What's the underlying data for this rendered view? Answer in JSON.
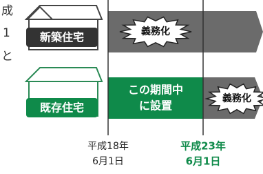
{
  "side_text": [
    "成",
    "1",
    "と"
  ],
  "rows": [
    {
      "label": "新築住宅",
      "badge": "義務化"
    },
    {
      "label": "既存住宅",
      "period": [
        "この期間中",
        "に設置"
      ],
      "badge": "義務化"
    }
  ],
  "dates": [
    {
      "lines": [
        "平成18年",
        "6月1日"
      ]
    },
    {
      "lines": [
        "平成23年",
        "6月1日"
      ]
    }
  ]
}
